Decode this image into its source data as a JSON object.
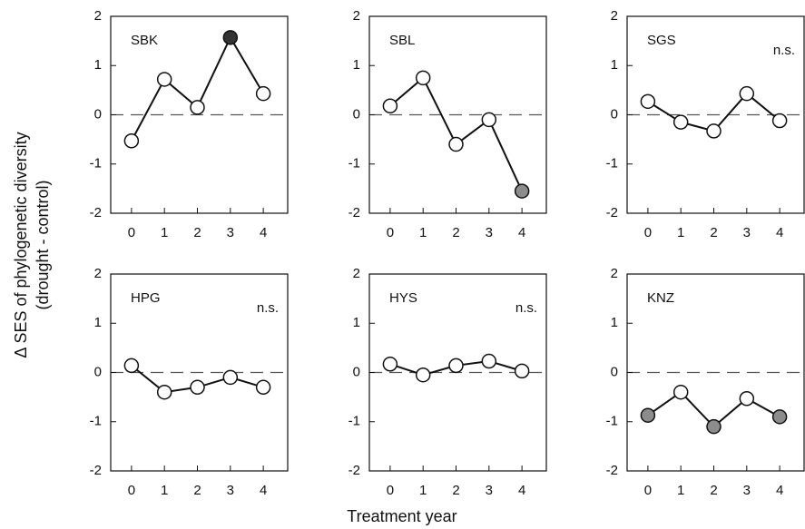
{
  "ylabel": [
    "Δ SES of phylogenetic diversity",
    "(drought - control)"
  ],
  "xlabel": "Treatment year",
  "chart_data": [
    {
      "type": "line",
      "title": "SBK",
      "x": [
        0,
        1,
        2,
        3,
        4
      ],
      "values": [
        -0.53,
        0.72,
        0.15,
        1.57,
        0.43
      ],
      "point_colors": [
        "#ffffff",
        "#ffffff",
        "#ffffff",
        "#333333",
        "#ffffff"
      ],
      "xlim": [
        -0.63,
        4.74
      ],
      "xticks": [
        0,
        1,
        2,
        3,
        4
      ],
      "ylim": [
        -2,
        2
      ],
      "yticks": [
        -2,
        -1,
        0,
        1,
        2
      ],
      "reference_line": 0
    },
    {
      "type": "line",
      "title": "SBL",
      "x": [
        0,
        1,
        2,
        3,
        4
      ],
      "values": [
        0.18,
        0.75,
        -0.6,
        -0.1,
        -1.55
      ],
      "point_colors": [
        "#ffffff",
        "#ffffff",
        "#ffffff",
        "#ffffff",
        "#8c8c8c"
      ],
      "xlim": [
        -0.63,
        4.74
      ],
      "xticks": [
        0,
        1,
        2,
        3,
        4
      ],
      "ylim": [
        -2,
        2
      ],
      "yticks": [
        -2,
        -1,
        0,
        1,
        2
      ],
      "reference_line": 0
    },
    {
      "type": "line",
      "title": "SGS",
      "annotation": "n.s.",
      "x": [
        0,
        1,
        2,
        3,
        4
      ],
      "values": [
        0.27,
        -0.15,
        -0.33,
        0.43,
        -0.12
      ],
      "point_colors": [
        "#ffffff",
        "#ffffff",
        "#ffffff",
        "#ffffff",
        "#ffffff"
      ],
      "xlim": [
        -0.63,
        4.74
      ],
      "xticks": [
        0,
        1,
        2,
        3,
        4
      ],
      "ylim": [
        -2,
        2
      ],
      "yticks": [
        -2,
        -1,
        0,
        1,
        2
      ],
      "reference_line": 0
    },
    {
      "type": "line",
      "title": "HPG",
      "annotation": "n.s.",
      "x": [
        0,
        1,
        2,
        3,
        4
      ],
      "values": [
        0.14,
        -0.4,
        -0.3,
        -0.1,
        -0.3
      ],
      "point_colors": [
        "#ffffff",
        "#ffffff",
        "#ffffff",
        "#ffffff",
        "#ffffff"
      ],
      "xlim": [
        -0.63,
        4.74
      ],
      "xticks": [
        0,
        1,
        2,
        3,
        4
      ],
      "ylim": [
        -2,
        2
      ],
      "yticks": [
        -2,
        -1,
        0,
        1,
        2
      ],
      "reference_line": 0
    },
    {
      "type": "line",
      "title": "HYS",
      "annotation": "n.s.",
      "x": [
        0,
        1,
        2,
        3,
        4
      ],
      "values": [
        0.17,
        -0.05,
        0.14,
        0.23,
        0.03
      ],
      "point_colors": [
        "#ffffff",
        "#ffffff",
        "#ffffff",
        "#ffffff",
        "#ffffff"
      ],
      "xlim": [
        -0.63,
        4.74
      ],
      "xticks": [
        0,
        1,
        2,
        3,
        4
      ],
      "ylim": [
        -2,
        2
      ],
      "yticks": [
        -2,
        -1,
        0,
        1,
        2
      ],
      "reference_line": 0
    },
    {
      "type": "line",
      "title": "KNZ",
      "x": [
        0,
        1,
        2,
        3,
        4
      ],
      "values": [
        -0.87,
        -0.4,
        -1.1,
        -0.53,
        -0.9
      ],
      "point_colors": [
        "#8c8c8c",
        "#ffffff",
        "#8c8c8c",
        "#ffffff",
        "#8c8c8c"
      ],
      "xlim": [
        -0.63,
        4.74
      ],
      "xticks": [
        0,
        1,
        2,
        3,
        4
      ],
      "ylim": [
        -2,
        2
      ],
      "yticks": [
        -2,
        -1,
        0,
        1,
        2
      ],
      "reference_line": 0
    }
  ]
}
